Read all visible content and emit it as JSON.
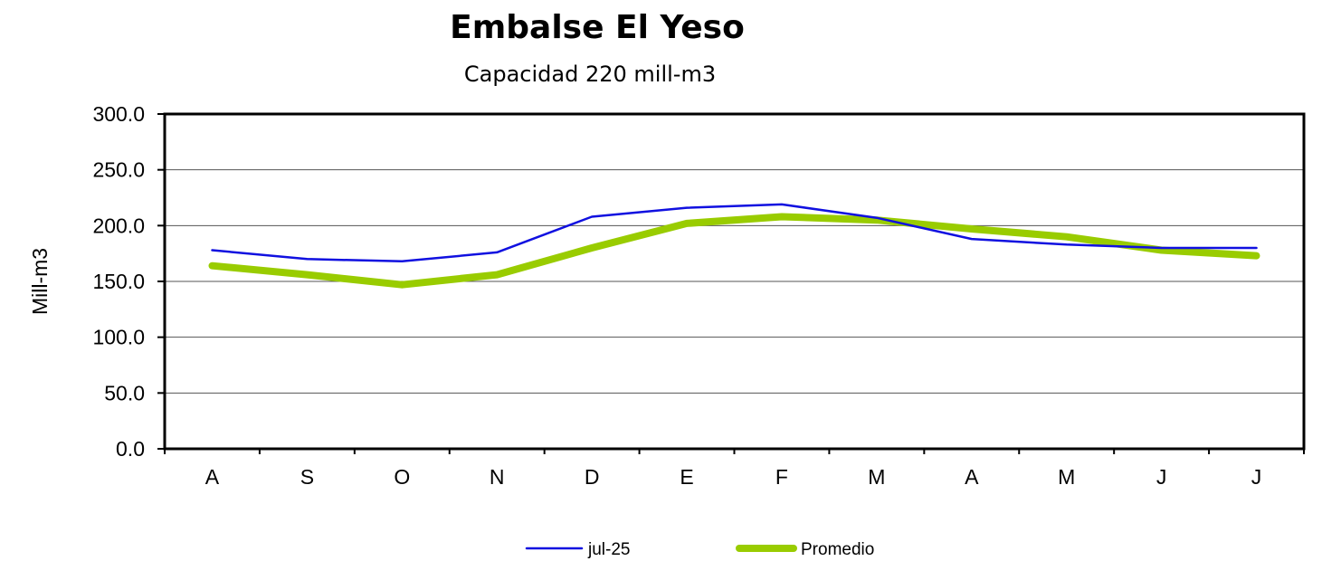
{
  "chart_data": {
    "type": "line",
    "title": "Embalse El Yeso",
    "subtitle": "Capacidad 220 mill-m3",
    "ylabel": "Mill-m3",
    "xlabel": "",
    "ylim": [
      0,
      300
    ],
    "y_ticks": [
      0,
      50,
      100,
      150,
      200,
      250,
      300
    ],
    "y_tick_labels": [
      "0.0",
      "50.0",
      "100.0",
      "150.0",
      "200.0",
      "250.0",
      "300.0"
    ],
    "categories": [
      "A",
      "S",
      "O",
      "N",
      "D",
      "E",
      "F",
      "M",
      "A",
      "M",
      "J",
      "J"
    ],
    "grid": true,
    "legend_position": "bottom",
    "series": [
      {
        "name": "jul-25",
        "color": "#1010e0",
        "values": [
          178,
          170,
          168,
          176,
          208,
          216,
          219,
          207,
          188,
          183,
          180,
          180
        ]
      },
      {
        "name": "Promedio",
        "color": "#99cc00",
        "values": [
          164,
          156,
          147,
          156,
          180,
          202,
          208,
          205,
          197,
          190,
          178,
          173
        ]
      }
    ]
  }
}
